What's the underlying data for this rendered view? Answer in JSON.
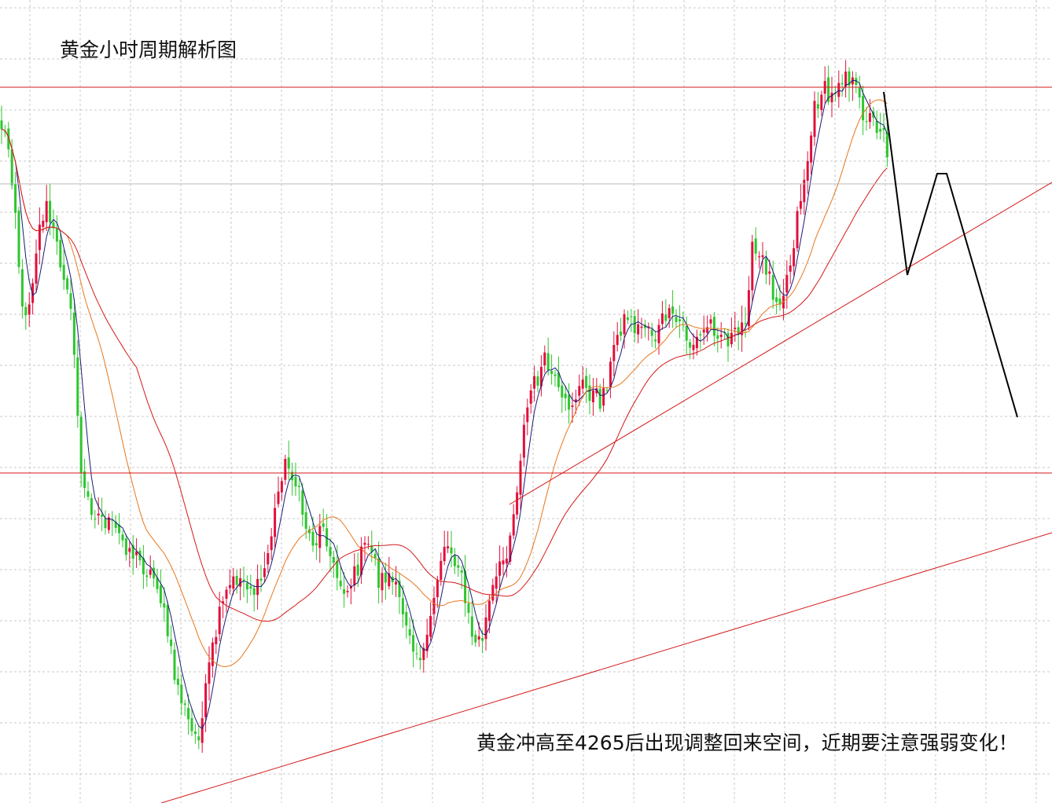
{
  "chart_data": {
    "type": "candlestick",
    "title": "黄金小时周期解析图",
    "annotation": "黄金冲高至4265后出现调整回来空间，近期要注意强弱变化！",
    "grid": true,
    "colors": {
      "up": "#e0103c",
      "down": "#2ec62e",
      "ma_fast": "#1a1a7a",
      "ma_mid": "#e8761c",
      "ma_slow": "#d41818",
      "levels": "#d41818",
      "trendlines": "#d41818",
      "projection": "#000000"
    }
  }
}
